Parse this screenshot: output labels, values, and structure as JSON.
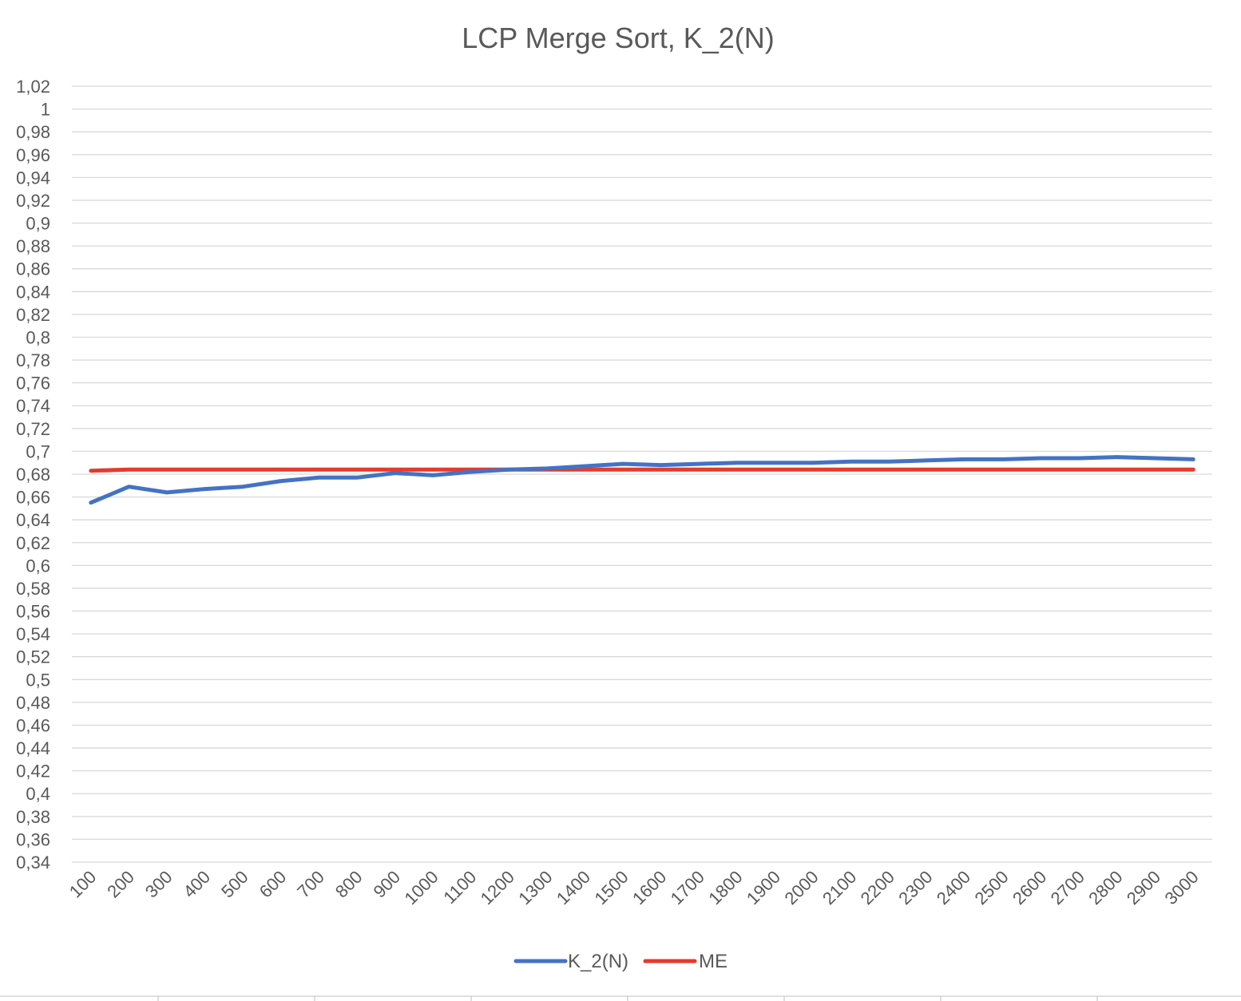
{
  "chart_data": {
    "type": "line",
    "title": "LCP Merge Sort, K_2(N)",
    "xlabel": "",
    "ylabel": "",
    "categories": [
      "100",
      "200",
      "300",
      "400",
      "500",
      "600",
      "700",
      "800",
      "900",
      "1000",
      "1100",
      "1200",
      "1300",
      "1400",
      "1500",
      "1600",
      "1700",
      "1800",
      "1900",
      "2000",
      "2100",
      "2200",
      "2300",
      "2400",
      "2500",
      "2600",
      "2700",
      "2800",
      "2900",
      "3000"
    ],
    "ylim": [
      0.34,
      1.02
    ],
    "ytick_step": 0.02,
    "ytick_labels": [
      "1,02",
      "1",
      "0,98",
      "0,96",
      "0,94",
      "0,92",
      "0,9",
      "0,88",
      "0,86",
      "0,84",
      "0,82",
      "0,8",
      "0,78",
      "0,76",
      "0,74",
      "0,72",
      "0,7",
      "0,68",
      "0,66",
      "0,64",
      "0,62",
      "0,6",
      "0,58",
      "0,56",
      "0,54",
      "0,52",
      "0,5",
      "0,48",
      "0,46",
      "0,44",
      "0,42",
      "0,4",
      "0,38",
      "0,36",
      "0,34"
    ],
    "grid": true,
    "legend_position": "bottom",
    "series": [
      {
        "name": "K_2(N)",
        "color": "#4472C4",
        "values": [
          0.655,
          0.669,
          0.664,
          0.667,
          0.669,
          0.674,
          0.677,
          0.677,
          0.681,
          0.679,
          0.682,
          0.684,
          0.685,
          0.687,
          0.689,
          0.688,
          0.689,
          0.69,
          0.69,
          0.69,
          0.691,
          0.691,
          0.692,
          0.693,
          0.693,
          0.694,
          0.694,
          0.695,
          0.694,
          0.693
        ]
      },
      {
        "name": "ME",
        "color": "#E8392B",
        "values": [
          0.683,
          0.684,
          0.684,
          0.684,
          0.684,
          0.684,
          0.684,
          0.684,
          0.684,
          0.684,
          0.684,
          0.684,
          0.684,
          0.684,
          0.684,
          0.684,
          0.684,
          0.684,
          0.684,
          0.684,
          0.684,
          0.684,
          0.684,
          0.684,
          0.684,
          0.684,
          0.684,
          0.684,
          0.684,
          0.684
        ]
      }
    ]
  }
}
